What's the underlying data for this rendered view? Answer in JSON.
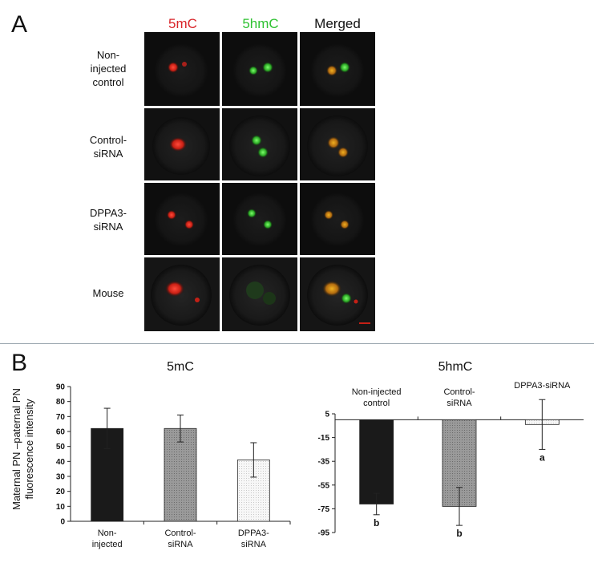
{
  "panel_a": {
    "letter": "A",
    "columns": [
      {
        "label": "5mC",
        "color": "#d9262b"
      },
      {
        "label": "5hmC",
        "color": "#2fc232"
      },
      {
        "label": "Merged",
        "color": "#111111"
      }
    ],
    "rows": [
      {
        "label_lines": [
          "Non-",
          "injected",
          "control"
        ]
      },
      {
        "label_lines": [
          "Control-",
          "siRNA"
        ]
      },
      {
        "label_lines": [
          "DPPA3-",
          "siRNA"
        ]
      },
      {
        "label_lines": [
          "Mouse"
        ]
      }
    ]
  },
  "panel_b": {
    "letter": "B",
    "shared_ylabel_lines": [
      "Maternal PN –paternal PN",
      "fluorescence intensity"
    ]
  },
  "chart_data": [
    {
      "type": "bar",
      "title": "5mC",
      "categories": [
        [
          "Non-",
          "injected"
        ],
        [
          "Control-",
          "siRNA"
        ],
        [
          "DPPA3-",
          "siRNA"
        ]
      ],
      "values": [
        62,
        62,
        41
      ],
      "errors": [
        13.5,
        9,
        11.5
      ],
      "ylim": [
        0,
        90
      ],
      "yticks": [
        0,
        10,
        20,
        30,
        40,
        50,
        60,
        70,
        80,
        90
      ],
      "bar_colors": [
        "#1a1a1a",
        "#8c8c8c",
        "#f3f3f3"
      ],
      "grid": false
    },
    {
      "type": "bar",
      "title": "5hmC",
      "categories": [
        [
          "Non-injected",
          "control"
        ],
        [
          "Control-",
          "siRNA"
        ],
        [
          "DPPA3-siRNA"
        ]
      ],
      "values": [
        -71,
        -73,
        -4
      ],
      "errors": [
        9,
        16,
        21
      ],
      "ylim": [
        -95,
        5
      ],
      "yticks": [
        5,
        -15,
        -35,
        -55,
        -75,
        -95
      ],
      "significance_letters": [
        "b",
        "b",
        "a"
      ],
      "bar_colors": [
        "#1a1a1a",
        "#8c8c8c",
        "#f3f3f3"
      ],
      "grid": false
    }
  ]
}
